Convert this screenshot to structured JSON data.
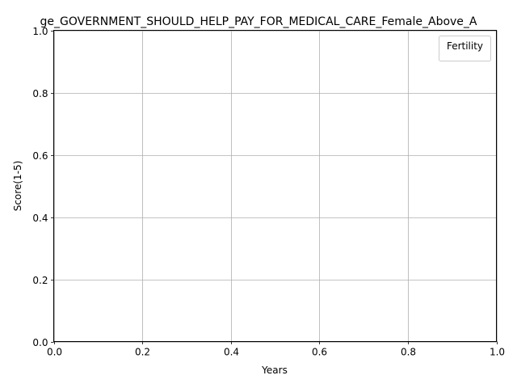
{
  "chart_data": {
    "type": "line",
    "title": "ge_GOVERNMENT_SHOULD_HELP_PAY_FOR_MEDICAL_CARE_Female_Above_A",
    "xlabel": "Years",
    "ylabel": "Score(1-5)",
    "xlim": [
      0.0,
      1.0
    ],
    "ylim": [
      0.0,
      1.0
    ],
    "xticks": [
      "0.0",
      "0.2",
      "0.4",
      "0.6",
      "0.8",
      "1.0"
    ],
    "yticks": [
      "0.0",
      "0.2",
      "0.4",
      "0.6",
      "0.8",
      "1.0"
    ],
    "grid": true,
    "legend": {
      "title": "Fertility",
      "placement": "top-right",
      "entries": []
    },
    "series": []
  },
  "colors": {
    "background": "#ffffff",
    "grid": "#b0b0b0",
    "axis": "#000000",
    "legend_border": "#cccccc"
  }
}
